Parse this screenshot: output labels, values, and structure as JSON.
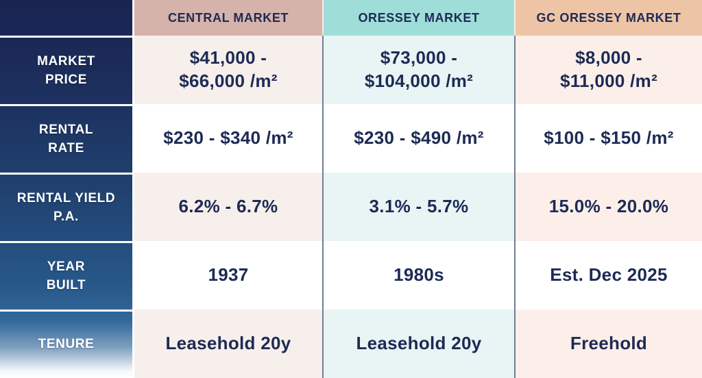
{
  "table": {
    "row_headers": [
      "MARKET\nPRICE",
      "RENTAL\nRATE",
      "RENTAL YIELD\nP.A.",
      "YEAR\nBUILT",
      "TENURE"
    ],
    "columns": [
      {
        "label": "CENTRAL MARKET",
        "header_color": "#d5b2aa",
        "tint_color": "#f6efeb",
        "values": [
          "$41,000 -\n$66,000 /m²",
          "$230 - $340 /m²",
          "6.2% - 6.7%",
          "1937",
          "Leasehold 20y"
        ]
      },
      {
        "label": "ORESSEY MARKET",
        "header_color": "#9fded8",
        "tint_color": "#e8f5f4",
        "values": [
          "$73,000 -\n$104,000 /m²",
          "$230 - $490 /m²",
          "3.1% - 5.7%",
          "1980s",
          "Leasehold 20y"
        ]
      },
      {
        "label": "GC ORESSEY MARKET",
        "header_color": "#edc5a6",
        "tint_color": "#fcefe9",
        "values": [
          "$8,000 -\n$11,000 /m²",
          "$100 - $150 /m²",
          "15.0% - 20.0%",
          "Est. Dec 2025",
          "Freehold"
        ]
      }
    ]
  },
  "theme": {
    "label_column_top": "#1a2450",
    "label_column_mid": "#275789",
    "label_column_bottom": "#ffffff",
    "label_text": "#ffffff",
    "value_text": "#1d2a55",
    "divider_dark": "#6e7d96",
    "divider_light": "#ffffff"
  },
  "chart_data": {
    "type": "table",
    "columns": [
      "",
      "CENTRAL MARKET",
      "ORESSEY MARKET",
      "GC ORESSEY MARKET"
    ],
    "rows": [
      [
        "MARKET PRICE",
        "$41,000 - $66,000 /m²",
        "$73,000 - $104,000 /m²",
        "$8,000 - $11,000 /m²"
      ],
      [
        "RENTAL RATE",
        "$230 - $340 /m²",
        "$230 - $490 /m²",
        "$100 - $150 /m²"
      ],
      [
        "RENTAL YIELD P.A.",
        "6.2% - 6.7%",
        "3.1% - 5.7%",
        "15.0% - 20.0%"
      ],
      [
        "YEAR BUILT",
        "1937",
        "1980s",
        "Est. Dec 2025"
      ],
      [
        "TENURE",
        "Leasehold 20y",
        "Leasehold 20y",
        "Freehold"
      ]
    ]
  }
}
